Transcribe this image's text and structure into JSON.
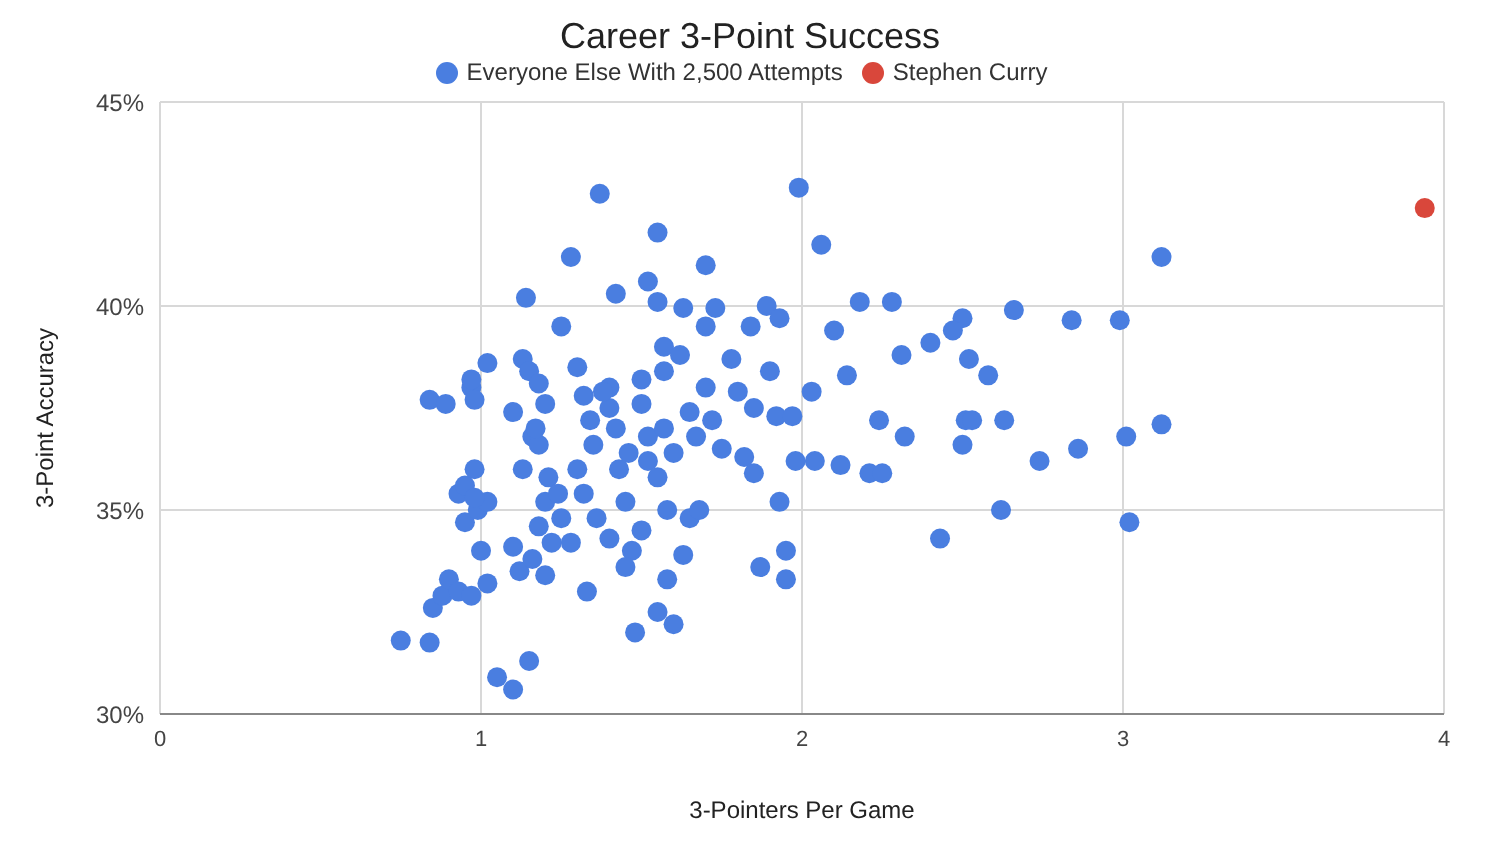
{
  "chart_data": {
    "type": "scatter",
    "title": "Career 3-Point Success",
    "xlabel": "3-Pointers Per Game",
    "ylabel": "3-Point Accuracy",
    "xlim": [
      0,
      4
    ],
    "xticks": [
      0,
      1,
      2,
      3,
      4
    ],
    "ylim": [
      30,
      45
    ],
    "yticks": [
      {
        "value": 30,
        "label": "30%"
      },
      {
        "value": 35,
        "label": "35%"
      },
      {
        "value": 40,
        "label": "40%"
      },
      {
        "value": 45,
        "label": "45%"
      }
    ],
    "grid": true,
    "legend": "top",
    "marker": "circle",
    "series": [
      {
        "name": "Everyone Else With 2,500 Attempts",
        "color": "#4a7ee0",
        "x": [
          0.75,
          0.84,
          0.85,
          0.88,
          0.9,
          0.93,
          0.84,
          0.89,
          0.97,
          0.97,
          0.98,
          1.02,
          0.93,
          0.95,
          0.98,
          0.95,
          0.99,
          1.02,
          0.98,
          1.0,
          1.02,
          0.97,
          1.05,
          1.1,
          1.12,
          1.1,
          1.15,
          1.16,
          1.18,
          1.2,
          1.22,
          1.25,
          1.13,
          1.16,
          1.18,
          1.21,
          1.13,
          1.15,
          1.18,
          1.17,
          1.2,
          1.1,
          1.14,
          1.2,
          1.24,
          1.25,
          1.28,
          1.3,
          1.32,
          1.34,
          1.35,
          1.3,
          1.32,
          1.36,
          1.28,
          1.33,
          1.37,
          1.4,
          1.4,
          1.42,
          1.42,
          1.43,
          1.45,
          1.47,
          1.45,
          1.48,
          1.5,
          1.5,
          1.52,
          1.52,
          1.55,
          1.55,
          1.52,
          1.55,
          1.57,
          1.57,
          1.57,
          1.6,
          1.58,
          1.58,
          1.55,
          1.6,
          1.62,
          1.63,
          1.65,
          1.67,
          1.65,
          1.68,
          1.7,
          1.7,
          1.7,
          1.73,
          1.72,
          1.75,
          1.78,
          1.8,
          1.82,
          1.84,
          1.85,
          1.85,
          1.87,
          1.89,
          1.9,
          1.92,
          1.93,
          1.93,
          1.95,
          1.95,
          1.97,
          1.98,
          1.99,
          1.46,
          1.38,
          1.63,
          1.5,
          1.4,
          2.06,
          2.18,
          2.28,
          2.5,
          2.66,
          2.84,
          2.99,
          3.12,
          2.1,
          2.4,
          2.47,
          2.52,
          2.31,
          2.58,
          2.03,
          2.14,
          2.24,
          2.51,
          2.53,
          2.63,
          2.32,
          2.5,
          2.74,
          2.86,
          3.01,
          3.12,
          2.04,
          2.21,
          2.25,
          2.12,
          2.62,
          2.43,
          3.02
        ],
        "values": [
          31.8,
          31.75,
          32.6,
          32.9,
          33.3,
          33.0,
          37.7,
          37.6,
          38.0,
          38.2,
          37.7,
          38.6,
          35.4,
          35.6,
          36.0,
          34.7,
          35.0,
          35.2,
          35.3,
          34.0,
          33.2,
          32.9,
          30.9,
          34.1,
          33.5,
          30.6,
          31.3,
          33.8,
          34.6,
          33.4,
          34.2,
          34.8,
          36.0,
          36.8,
          36.6,
          35.8,
          38.7,
          38.4,
          38.1,
          37.0,
          37.6,
          37.4,
          40.2,
          35.2,
          35.4,
          39.5,
          41.2,
          38.5,
          37.8,
          37.2,
          36.6,
          36.0,
          35.4,
          34.8,
          34.2,
          33.0,
          42.75,
          38.0,
          37.5,
          37.0,
          40.3,
          36.0,
          35.2,
          34.0,
          33.6,
          32.0,
          38.2,
          37.6,
          36.8,
          36.2,
          35.8,
          40.1,
          40.6,
          41.8,
          39.0,
          38.4,
          37.0,
          36.4,
          35.0,
          33.3,
          32.5,
          32.2,
          38.8,
          39.95,
          37.4,
          36.8,
          34.8,
          35.0,
          38.0,
          39.5,
          41.0,
          39.95,
          37.2,
          36.5,
          38.7,
          37.9,
          36.3,
          39.5,
          37.5,
          35.9,
          33.6,
          40.0,
          38.4,
          37.3,
          39.7,
          35.2,
          34.0,
          33.3,
          37.3,
          36.2,
          42.9,
          36.4,
          37.9,
          33.9,
          34.5,
          34.3,
          41.5,
          40.1,
          40.1,
          39.7,
          39.9,
          39.65,
          39.65,
          41.2,
          39.4,
          39.1,
          39.4,
          38.7,
          38.8,
          38.3,
          37.9,
          38.3,
          37.2,
          37.2,
          37.2,
          37.2,
          36.8,
          36.6,
          36.2,
          36.5,
          36.8,
          37.1,
          36.2,
          35.9,
          35.9,
          36.1,
          35.0,
          34.3,
          34.7
        ]
      },
      {
        "name": "Stephen Curry",
        "color": "#d9473b",
        "x": [
          3.94
        ],
        "values": [
          42.4
        ]
      }
    ]
  }
}
